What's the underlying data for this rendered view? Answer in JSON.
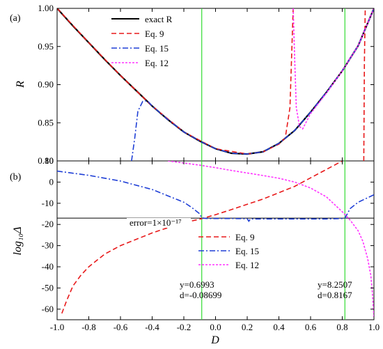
{
  "chart_data": [
    {
      "panel": "(a)",
      "type": "line",
      "ylabel": "R",
      "xlim": [
        -1.0,
        1.0
      ],
      "ylim": [
        0.8,
        1.0
      ],
      "yticks": [
        "0.80",
        "0.85",
        "0.90",
        "0.95",
        "1.00"
      ],
      "legend_position": "top-left",
      "vertical_lines_x": [
        -0.08699,
        0.8167
      ],
      "series": [
        {
          "name": "exact R",
          "color": "#000000",
          "style": "solid",
          "x": [
            -1.0,
            -0.9,
            -0.8,
            -0.7,
            -0.6,
            -0.5,
            -0.4,
            -0.3,
            -0.2,
            -0.1,
            0.0,
            0.1,
            0.2,
            0.3,
            0.4,
            0.5,
            0.6,
            0.7,
            0.8,
            0.9,
            1.0
          ],
          "y": [
            1.0,
            0.977,
            0.955,
            0.933,
            0.912,
            0.892,
            0.872,
            0.854,
            0.838,
            0.826,
            0.816,
            0.81,
            0.809,
            0.812,
            0.823,
            0.84,
            0.864,
            0.89,
            0.918,
            0.951,
            1.0
          ]
        },
        {
          "name": "Eq. 9",
          "color": "#e8191a",
          "style": "dash",
          "x": [
            -1.0,
            -0.8,
            -0.6,
            -0.4,
            -0.2,
            0.0,
            0.2,
            0.3,
            0.4,
            0.44,
            0.47,
            0.49
          ],
          "y": [
            1.0,
            0.955,
            0.912,
            0.872,
            0.838,
            0.816,
            0.809,
            0.812,
            0.822,
            0.83,
            0.87,
            1.0
          ],
          "x_b": [
            0.936,
            0.94,
            0.945
          ],
          "y_b": [
            0.8,
            0.93,
            1.0
          ]
        },
        {
          "name": "Eq. 15",
          "color": "#1f3fd6",
          "style": "dashdot",
          "x": [
            -0.53,
            -0.51,
            -0.49,
            -0.46,
            -0.43,
            -0.4,
            -0.3,
            -0.2,
            -0.1,
            0.0,
            0.1,
            0.2,
            0.3,
            0.4,
            0.5,
            0.6,
            0.7,
            0.8,
            0.9,
            1.0
          ],
          "y": [
            0.8,
            0.83,
            0.865,
            0.878,
            0.879,
            0.872,
            0.854,
            0.838,
            0.826,
            0.816,
            0.81,
            0.809,
            0.812,
            0.823,
            0.84,
            0.864,
            0.89,
            0.918,
            0.951,
            1.0
          ]
        },
        {
          "name": "Eq. 12",
          "color": "#ff33ff",
          "style": "dot",
          "x": [
            0.49,
            0.5,
            0.51,
            0.53,
            0.55,
            0.6,
            0.7,
            0.8,
            0.9,
            1.0
          ],
          "y": [
            1.0,
            0.93,
            0.87,
            0.845,
            0.842,
            0.862,
            0.889,
            0.918,
            0.951,
            1.0
          ]
        }
      ]
    },
    {
      "panel": "(b)",
      "type": "line",
      "xlabel": "D",
      "ylabel": "log₁₀Δ",
      "xlim": [
        -1.0,
        1.0
      ],
      "ylim": [
        -65,
        10
      ],
      "xticks": [
        "-1.0",
        "-0.8",
        "-0.6",
        "-0.4",
        "-0.2",
        "0.0",
        "0.2",
        "0.4",
        "0.6",
        "0.8",
        "1.0"
      ],
      "yticks": [
        "-60",
        "-50",
        "-40",
        "-30",
        "-20",
        "-10",
        "0",
        "10"
      ],
      "legend_position": "right-middle",
      "error_line": {
        "y": -17,
        "label": "error=1×10⁻¹⁷"
      },
      "vertical_lines_x": [
        -0.08699,
        0.8167
      ],
      "annotations": [
        {
          "line1": "y=0.6993",
          "line2": "d=-0.08699"
        },
        {
          "line1": "y=8.2507",
          "line2": "d=0.8167"
        }
      ],
      "series": [
        {
          "name": "Eq. 9",
          "color": "#e8191a",
          "style": "dash",
          "x": [
            -0.97,
            -0.94,
            -0.9,
            -0.85,
            -0.8,
            -0.7,
            -0.6,
            -0.5,
            -0.4,
            -0.3,
            -0.2,
            -0.1,
            0.0,
            0.1,
            0.2,
            0.3,
            0.4,
            0.5,
            0.6,
            0.7,
            0.8
          ],
          "y": [
            -62,
            -56,
            -49,
            -44,
            -40,
            -34,
            -30,
            -27,
            -24,
            -21.5,
            -19.2,
            -17.5,
            -15.4,
            -13,
            -10.5,
            -8,
            -5,
            -2,
            2,
            6,
            10
          ]
        },
        {
          "name": "Eq. 15",
          "color": "#1f3fd6",
          "style": "dashdot",
          "x": [
            -1.0,
            -0.8,
            -0.6,
            -0.4,
            -0.3,
            -0.2,
            -0.15,
            -0.1,
            -0.087,
            -0.05,
            0.0,
            0.1,
            0.2,
            0.21,
            0.22,
            0.3,
            0.5,
            0.7,
            0.8,
            0.8167,
            0.85,
            0.9,
            1.0
          ],
          "y": [
            5.2,
            3.2,
            0.5,
            -3.5,
            -6.5,
            -9.5,
            -12,
            -15,
            -17,
            -17.2,
            -17.2,
            -17.2,
            -17.3,
            -18.5,
            -17.4,
            -17.4,
            -17.4,
            -17.4,
            -17.2,
            -17,
            -12.5,
            -9.5,
            -6
          ]
        },
        {
          "name": "Eq. 12",
          "color": "#ff33ff",
          "style": "dot",
          "x": [
            -0.3,
            -0.2,
            -0.1,
            0.0,
            0.1,
            0.2,
            0.3,
            0.4,
            0.5,
            0.6,
            0.7,
            0.8,
            0.85,
            0.9,
            0.93,
            0.96,
            0.98,
            0.99,
            1.0
          ],
          "y": [
            10,
            9,
            8,
            6.8,
            5.5,
            4.3,
            3.1,
            1.8,
            0,
            -2.8,
            -7,
            -14,
            -18,
            -23,
            -28,
            -36,
            -44,
            -52,
            -64
          ]
        }
      ]
    }
  ]
}
